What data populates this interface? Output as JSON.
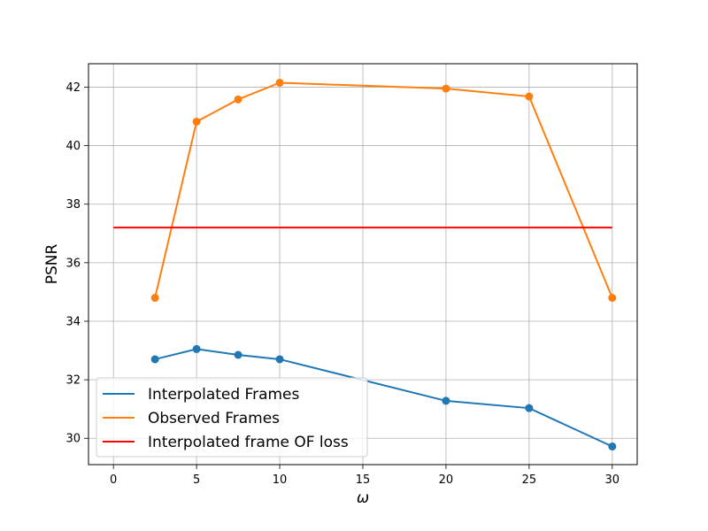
{
  "chart_data": {
    "type": "line",
    "xlabel": "ω",
    "ylabel": "PSNR",
    "xlim": [
      -1.5,
      31.5
    ],
    "ylim": [
      29.1,
      42.8
    ],
    "x_ticks": [
      0,
      5,
      10,
      15,
      20,
      25,
      30
    ],
    "y_ticks": [
      30,
      32,
      34,
      36,
      38,
      40,
      42
    ],
    "grid": true,
    "legend_position": "lower-left",
    "series": [
      {
        "name": "Interpolated Frames",
        "color": "#1f77b4",
        "markers": true,
        "x": [
          2.5,
          5,
          7.5,
          10,
          20,
          25,
          30
        ],
        "y": [
          32.7,
          33.05,
          32.85,
          32.7,
          31.28,
          31.03,
          29.72
        ]
      },
      {
        "name": "Observed Frames",
        "color": "#ff7f0e",
        "markers": true,
        "x": [
          2.5,
          5,
          7.5,
          10,
          20,
          25,
          30
        ],
        "y": [
          34.8,
          40.82,
          41.58,
          42.15,
          41.95,
          41.68,
          34.8
        ]
      },
      {
        "name": "Interpolated frame OF loss",
        "color": "#ff0000",
        "markers": false,
        "x": [
          0,
          30
        ],
        "y": [
          37.2,
          37.2
        ]
      }
    ]
  }
}
